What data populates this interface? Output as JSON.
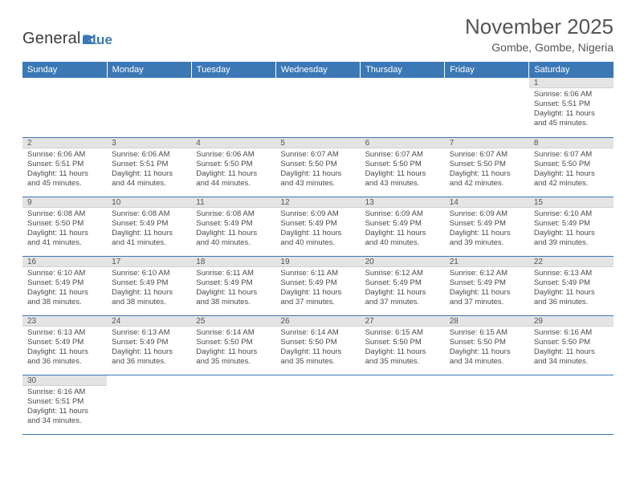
{
  "logo": {
    "part1": "General",
    "part2": "Blue"
  },
  "header": {
    "title": "November 2025",
    "subtitle": "Gombe, Gombe, Nigeria"
  },
  "colors": {
    "accent": "#3b78b5",
    "daynum_bg": "#e4e4e4",
    "border": "#3b78b5"
  },
  "weekdays": [
    "Sunday",
    "Monday",
    "Tuesday",
    "Wednesday",
    "Thursday",
    "Friday",
    "Saturday"
  ],
  "weeks": [
    [
      null,
      null,
      null,
      null,
      null,
      null,
      {
        "n": "1",
        "sunrise": "Sunrise: 6:06 AM",
        "sunset": "Sunset: 5:51 PM",
        "d1": "Daylight: 11 hours",
        "d2": "and 45 minutes."
      }
    ],
    [
      {
        "n": "2",
        "sunrise": "Sunrise: 6:06 AM",
        "sunset": "Sunset: 5:51 PM",
        "d1": "Daylight: 11 hours",
        "d2": "and 45 minutes."
      },
      {
        "n": "3",
        "sunrise": "Sunrise: 6:06 AM",
        "sunset": "Sunset: 5:51 PM",
        "d1": "Daylight: 11 hours",
        "d2": "and 44 minutes."
      },
      {
        "n": "4",
        "sunrise": "Sunrise: 6:06 AM",
        "sunset": "Sunset: 5:50 PM",
        "d1": "Daylight: 11 hours",
        "d2": "and 44 minutes."
      },
      {
        "n": "5",
        "sunrise": "Sunrise: 6:07 AM",
        "sunset": "Sunset: 5:50 PM",
        "d1": "Daylight: 11 hours",
        "d2": "and 43 minutes."
      },
      {
        "n": "6",
        "sunrise": "Sunrise: 6:07 AM",
        "sunset": "Sunset: 5:50 PM",
        "d1": "Daylight: 11 hours",
        "d2": "and 43 minutes."
      },
      {
        "n": "7",
        "sunrise": "Sunrise: 6:07 AM",
        "sunset": "Sunset: 5:50 PM",
        "d1": "Daylight: 11 hours",
        "d2": "and 42 minutes."
      },
      {
        "n": "8",
        "sunrise": "Sunrise: 6:07 AM",
        "sunset": "Sunset: 5:50 PM",
        "d1": "Daylight: 11 hours",
        "d2": "and 42 minutes."
      }
    ],
    [
      {
        "n": "9",
        "sunrise": "Sunrise: 6:08 AM",
        "sunset": "Sunset: 5:50 PM",
        "d1": "Daylight: 11 hours",
        "d2": "and 41 minutes."
      },
      {
        "n": "10",
        "sunrise": "Sunrise: 6:08 AM",
        "sunset": "Sunset: 5:49 PM",
        "d1": "Daylight: 11 hours",
        "d2": "and 41 minutes."
      },
      {
        "n": "11",
        "sunrise": "Sunrise: 6:08 AM",
        "sunset": "Sunset: 5:49 PM",
        "d1": "Daylight: 11 hours",
        "d2": "and 40 minutes."
      },
      {
        "n": "12",
        "sunrise": "Sunrise: 6:09 AM",
        "sunset": "Sunset: 5:49 PM",
        "d1": "Daylight: 11 hours",
        "d2": "and 40 minutes."
      },
      {
        "n": "13",
        "sunrise": "Sunrise: 6:09 AM",
        "sunset": "Sunset: 5:49 PM",
        "d1": "Daylight: 11 hours",
        "d2": "and 40 minutes."
      },
      {
        "n": "14",
        "sunrise": "Sunrise: 6:09 AM",
        "sunset": "Sunset: 5:49 PM",
        "d1": "Daylight: 11 hours",
        "d2": "and 39 minutes."
      },
      {
        "n": "15",
        "sunrise": "Sunrise: 6:10 AM",
        "sunset": "Sunset: 5:49 PM",
        "d1": "Daylight: 11 hours",
        "d2": "and 39 minutes."
      }
    ],
    [
      {
        "n": "16",
        "sunrise": "Sunrise: 6:10 AM",
        "sunset": "Sunset: 5:49 PM",
        "d1": "Daylight: 11 hours",
        "d2": "and 38 minutes."
      },
      {
        "n": "17",
        "sunrise": "Sunrise: 6:10 AM",
        "sunset": "Sunset: 5:49 PM",
        "d1": "Daylight: 11 hours",
        "d2": "and 38 minutes."
      },
      {
        "n": "18",
        "sunrise": "Sunrise: 6:11 AM",
        "sunset": "Sunset: 5:49 PM",
        "d1": "Daylight: 11 hours",
        "d2": "and 38 minutes."
      },
      {
        "n": "19",
        "sunrise": "Sunrise: 6:11 AM",
        "sunset": "Sunset: 5:49 PM",
        "d1": "Daylight: 11 hours",
        "d2": "and 37 minutes."
      },
      {
        "n": "20",
        "sunrise": "Sunrise: 6:12 AM",
        "sunset": "Sunset: 5:49 PM",
        "d1": "Daylight: 11 hours",
        "d2": "and 37 minutes."
      },
      {
        "n": "21",
        "sunrise": "Sunrise: 6:12 AM",
        "sunset": "Sunset: 5:49 PM",
        "d1": "Daylight: 11 hours",
        "d2": "and 37 minutes."
      },
      {
        "n": "22",
        "sunrise": "Sunrise: 6:13 AM",
        "sunset": "Sunset: 5:49 PM",
        "d1": "Daylight: 11 hours",
        "d2": "and 36 minutes."
      }
    ],
    [
      {
        "n": "23",
        "sunrise": "Sunrise: 6:13 AM",
        "sunset": "Sunset: 5:49 PM",
        "d1": "Daylight: 11 hours",
        "d2": "and 36 minutes."
      },
      {
        "n": "24",
        "sunrise": "Sunrise: 6:13 AM",
        "sunset": "Sunset: 5:49 PM",
        "d1": "Daylight: 11 hours",
        "d2": "and 36 minutes."
      },
      {
        "n": "25",
        "sunrise": "Sunrise: 6:14 AM",
        "sunset": "Sunset: 5:50 PM",
        "d1": "Daylight: 11 hours",
        "d2": "and 35 minutes."
      },
      {
        "n": "26",
        "sunrise": "Sunrise: 6:14 AM",
        "sunset": "Sunset: 5:50 PM",
        "d1": "Daylight: 11 hours",
        "d2": "and 35 minutes."
      },
      {
        "n": "27",
        "sunrise": "Sunrise: 6:15 AM",
        "sunset": "Sunset: 5:50 PM",
        "d1": "Daylight: 11 hours",
        "d2": "and 35 minutes."
      },
      {
        "n": "28",
        "sunrise": "Sunrise: 6:15 AM",
        "sunset": "Sunset: 5:50 PM",
        "d1": "Daylight: 11 hours",
        "d2": "and 34 minutes."
      },
      {
        "n": "29",
        "sunrise": "Sunrise: 6:16 AM",
        "sunset": "Sunset: 5:50 PM",
        "d1": "Daylight: 11 hours",
        "d2": "and 34 minutes."
      }
    ],
    [
      {
        "n": "30",
        "sunrise": "Sunrise: 6:16 AM",
        "sunset": "Sunset: 5:51 PM",
        "d1": "Daylight: 11 hours",
        "d2": "and 34 minutes."
      },
      null,
      null,
      null,
      null,
      null,
      null
    ]
  ]
}
